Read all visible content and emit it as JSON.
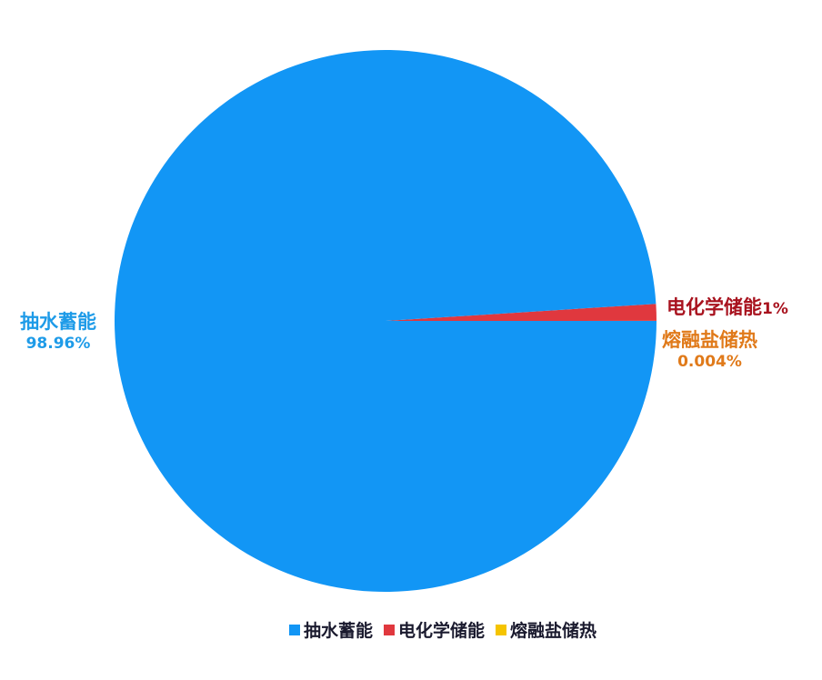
{
  "chart_data": {
    "type": "pie",
    "slices": [
      {
        "name": "抽水蓄能",
        "value": 98.96,
        "label": "98.96%",
        "color": "#1296F5",
        "label_color": "#1E9BE8"
      },
      {
        "name": "电化学储能",
        "value": 1,
        "label": "1%",
        "color": "#E0383E",
        "label_color": "#A8121E"
      },
      {
        "name": "熔融盐储热",
        "value": 0.004,
        "label": "0.004%",
        "color": "#F5C400",
        "label_color": "#E07A1A"
      }
    ],
    "legend": {
      "position": "bottom"
    }
  }
}
